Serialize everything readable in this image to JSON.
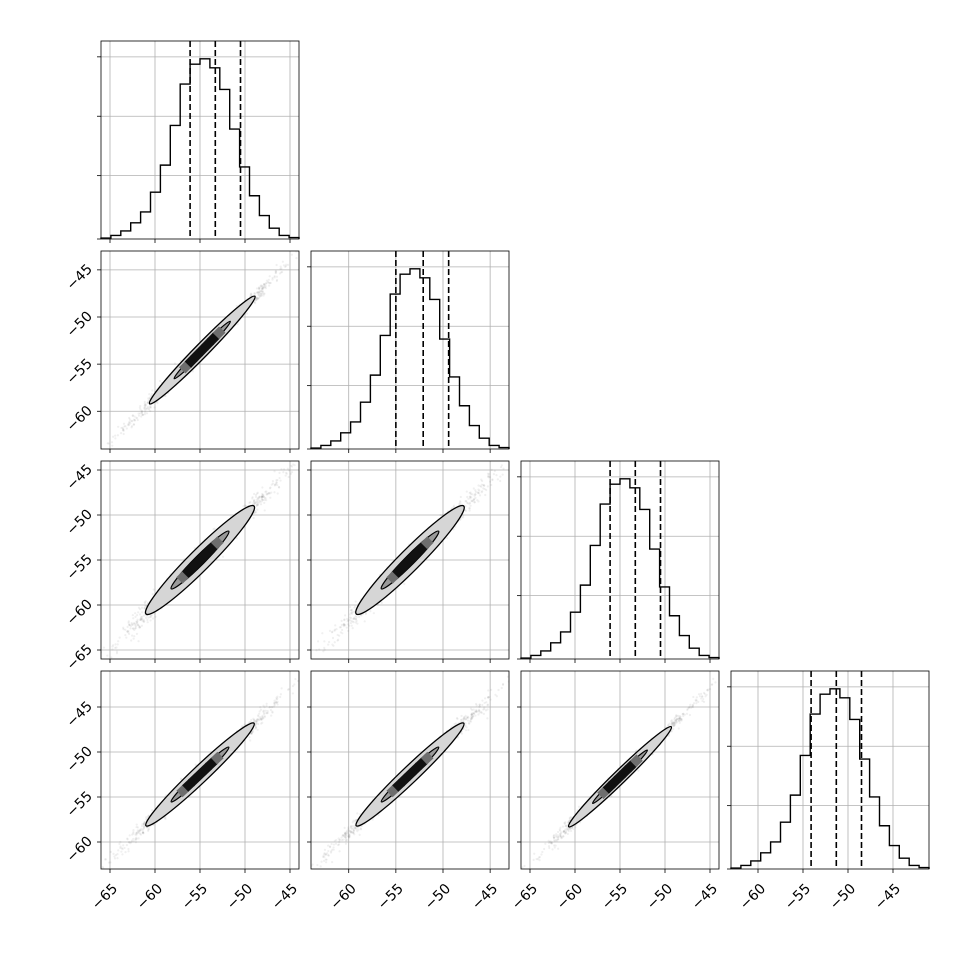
{
  "chart_data": {
    "type": "corner",
    "dimension": 4,
    "grid": true,
    "parameters": [
      {
        "range": [
          -66,
          -44
        ],
        "median": -53.3,
        "q16": -56.1,
        "q84": -50.5,
        "sigma": 2.8,
        "ticks": [
          -65,
          -60,
          -55,
          -50,
          -45
        ],
        "tick_labels": [
          "−65",
          "−60",
          "−55",
          "−50",
          "−45"
        ]
      },
      {
        "range": [
          -64,
          -43
        ],
        "median": -52.1,
        "q16": -55.0,
        "q84": -49.4,
        "sigma": 2.8,
        "ticks": [
          -60,
          -55,
          -50,
          -45
        ],
        "tick_labels": [
          "−60",
          "−55",
          "−50",
          "−45"
        ]
      },
      {
        "range": [
          -66,
          -44
        ],
        "median": -53.3,
        "q16": -56.1,
        "q84": -50.5,
        "sigma": 2.8,
        "ticks": [
          -65,
          -60,
          -55,
          -50,
          -45
        ],
        "tick_labels": [
          "−65",
          "−60",
          "−55",
          "−50",
          "−45"
        ]
      },
      {
        "range": [
          -63,
          -41
        ],
        "median": -51.3,
        "q16": -54.1,
        "q84": -48.5,
        "sigma": 2.8,
        "ticks": [
          -60,
          -55,
          -50,
          -45
        ],
        "tick_labels": [
          "−60",
          "−55",
          "−50",
          "−45"
        ]
      }
    ],
    "histograms": [
      {
        "bins_lo": -66,
        "bins_hi": -44,
        "nbins": 20,
        "counts": [
          0.005,
          0.02,
          0.045,
          0.09,
          0.15,
          0.26,
          0.41,
          0.63,
          0.86,
          0.97,
          1.0,
          0.95,
          0.83,
          0.61,
          0.4,
          0.24,
          0.13,
          0.06,
          0.02,
          0.008
        ]
      },
      {
        "bins_lo": -64,
        "bins_hi": -43,
        "nbins": 20,
        "counts": [
          0.005,
          0.02,
          0.045,
          0.09,
          0.15,
          0.26,
          0.41,
          0.63,
          0.86,
          0.97,
          1.0,
          0.95,
          0.83,
          0.61,
          0.4,
          0.24,
          0.13,
          0.06,
          0.02,
          0.008
        ]
      },
      {
        "bins_lo": -66,
        "bins_hi": -44,
        "nbins": 20,
        "counts": [
          0.005,
          0.02,
          0.045,
          0.09,
          0.15,
          0.26,
          0.41,
          0.63,
          0.86,
          0.97,
          1.0,
          0.95,
          0.83,
          0.61,
          0.4,
          0.24,
          0.13,
          0.06,
          0.02,
          0.008
        ]
      },
      {
        "bins_lo": -63,
        "bins_hi": -41,
        "nbins": 20,
        "counts": [
          0.005,
          0.02,
          0.045,
          0.09,
          0.15,
          0.26,
          0.41,
          0.63,
          0.86,
          0.97,
          1.0,
          0.95,
          0.83,
          0.61,
          0.4,
          0.24,
          0.13,
          0.06,
          0.02,
          0.008
        ]
      }
    ],
    "scatter_panels": [
      {
        "row": 1,
        "col": 0,
        "x_from": -64.5,
        "x_to": -45.0,
        "y_from": -63.0,
        "y_to": -44.0,
        "width_ratio": 0.045
      },
      {
        "row": 2,
        "col": 0,
        "x_from": -65.0,
        "x_to": -45.0,
        "y_from": -65.0,
        "y_to": -45.0,
        "width_ratio": 0.07
      },
      {
        "row": 2,
        "col": 1,
        "x_from": -63.0,
        "x_to": -44.0,
        "y_from": -65.0,
        "y_to": -45.0,
        "width_ratio": 0.07
      },
      {
        "row": 3,
        "col": 0,
        "x_from": -65.0,
        "x_to": -45.0,
        "y_from": -62.0,
        "y_to": -43.0,
        "width_ratio": 0.055
      },
      {
        "row": 3,
        "col": 1,
        "x_from": -63.0,
        "x_to": -44.0,
        "y_from": -62.0,
        "y_to": -43.0,
        "width_ratio": 0.055
      },
      {
        "row": 3,
        "col": 2,
        "x_from": -64.5,
        "x_to": -45.5,
        "y_from": -62.0,
        "y_to": -43.5,
        "width_ratio": 0.045
      }
    ],
    "colors": {
      "line": "#000000",
      "points": "#555555",
      "grid": "#b0b0b0",
      "contour_fill": "#d6d6d6"
    }
  }
}
